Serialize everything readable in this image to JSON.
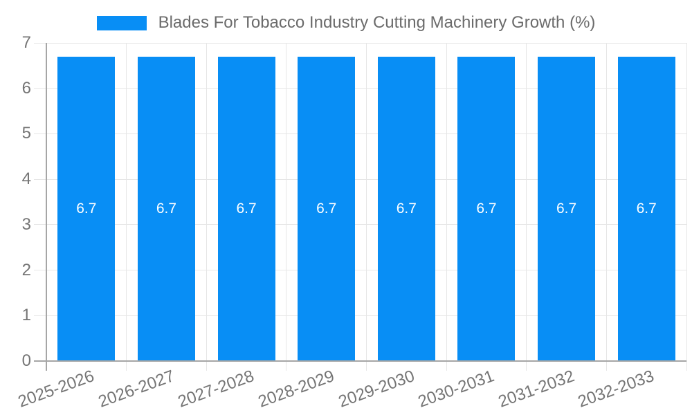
{
  "legend": {
    "label": "Blades For Tobacco Industry Cutting Machinery Growth (%)",
    "position": "top"
  },
  "chart_data": {
    "type": "bar",
    "title": "Blades For Tobacco Industry Cutting Machinery Growth (%)",
    "categories": [
      "2025-2026",
      "2026-2027",
      "2027-2028",
      "2028-2029",
      "2029-2030",
      "2030-2031",
      "2031-2032",
      "2032-2033"
    ],
    "values": [
      6.7,
      6.7,
      6.7,
      6.7,
      6.7,
      6.7,
      6.7,
      6.7
    ],
    "bar_value_labels": [
      "6.7",
      "6.7",
      "6.7",
      "6.7",
      "6.7",
      "6.7",
      "6.7",
      "6.7"
    ],
    "xlabel": "",
    "ylabel": "",
    "ylim": [
      0,
      7
    ],
    "yticks": [
      0,
      1,
      2,
      3,
      4,
      5,
      6,
      7
    ],
    "grid": true,
    "legend_position": "top",
    "colors": {
      "bar": "#088EF5",
      "bar_label": "#FFFFFF",
      "grid_line": "#E6E6E6",
      "axis_line": "#A6A6A6",
      "tick_text": "#757575",
      "legend_text": "#6B6B6B"
    }
  }
}
